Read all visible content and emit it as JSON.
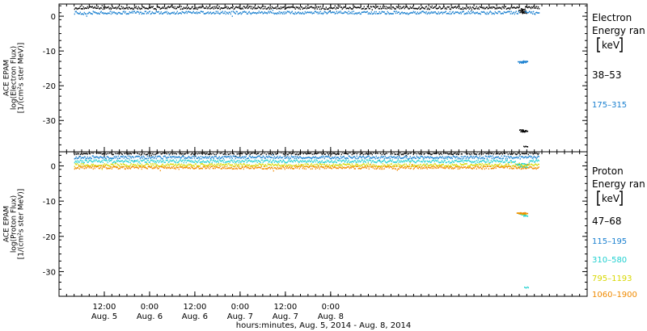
{
  "chart_data": [
    {
      "type": "scatter",
      "ylabel": [
        "ACE EPAM",
        "log(Electron Flux)",
        "[1/(cm²s ster MeV)]"
      ],
      "ylim": [
        -39,
        3.5
      ],
      "yticks": [
        0,
        -10,
        -20,
        -30
      ],
      "legend_title": [
        "Electron",
        "Energy ran",
        "[keV]"
      ],
      "series": [
        {
          "name": "38–53",
          "color": "#000000",
          "base": 2.4,
          "segments": [
            [
              4,
              122.0
            ],
            [
              123.5,
              127.2
            ]
          ],
          "extra": [
            [
              122.3,
              1.7
            ],
            [
              122.6,
              1.1
            ],
            [
              122.9,
              2.0
            ],
            [
              123.1,
              1.4
            ],
            [
              123.3,
              0.9
            ],
            [
              122.5,
              -32.8
            ],
            [
              122.8,
              -33.3
            ],
            [
              123.2,
              -33.0
            ],
            [
              123.6,
              -33.2
            ],
            [
              123.6,
              -37.5
            ]
          ]
        },
        {
          "name": "175–315",
          "color": "#1a80d0",
          "base": 1.0,
          "segments": [
            [
              4,
              122.0
            ],
            [
              123.5,
              127.2
            ]
          ],
          "extra": [
            [
              122.1,
              -13.2
            ],
            [
              122.5,
              -13.4
            ],
            [
              122.9,
              -13.1
            ],
            [
              123.3,
              -13.3
            ],
            [
              123.6,
              -13.0
            ]
          ]
        }
      ]
    },
    {
      "type": "scatter",
      "ylabel": [
        "ACE EPAM",
        "log(Proton Flux)",
        "[1/(cm²s ster MeV)]"
      ],
      "ylim": [
        -37,
        4
      ],
      "yticks": [
        0,
        -10,
        -20,
        -30
      ],
      "legend_title": [
        "Proton",
        "Energy ran",
        "[keV]"
      ],
      "xlabel": "hours:minutes, Aug.  5, 2014 - Aug.  8, 2014",
      "series": [
        {
          "name": "47–68",
          "color": "#000000",
          "base": 3.6,
          "segments": [
            [
              4,
              127.2
            ]
          ],
          "extra": [
            [
              35.0,
              4.1
            ],
            [
              36.0,
              4.2
            ],
            [
              60.0,
              4.0
            ],
            [
              82.0,
              3.9
            ]
          ]
        },
        {
          "name": "115–195",
          "color": "#1a80d0",
          "base": 2.4,
          "segments": [
            [
              4,
              127.2
            ]
          ],
          "extra": []
        },
        {
          "name": "310–580",
          "color": "#20d0d0",
          "base": 1.3,
          "segments": [
            [
              4,
              121.0
            ],
            [
              124.5,
              127.2
            ]
          ],
          "extra": [
            [
              121.5,
              0.5
            ],
            [
              122.0,
              0.2
            ],
            [
              122.5,
              -0.3
            ],
            [
              123.0,
              0.6
            ],
            [
              123.6,
              -0.4
            ],
            [
              124.0,
              0.3
            ],
            [
              122.3,
              -13.6
            ],
            [
              123.0,
              -13.9
            ],
            [
              123.6,
              -14.2
            ],
            [
              123.8,
              -34.5
            ]
          ]
        },
        {
          "name": "795–1193",
          "color": "#d8d800",
          "base": 0.2,
          "segments": [
            [
              4,
              127.2
            ]
          ],
          "extra": [
            [
              122.0,
              -13.5
            ],
            [
              123.2,
              -13.7
            ]
          ]
        },
        {
          "name": "1060–1900",
          "color": "#f08a00",
          "base": -0.5,
          "segments": [
            [
              4,
              127.2
            ]
          ],
          "extra": [
            [
              121.8,
              -13.4
            ],
            [
              122.4,
              -13.5
            ],
            [
              123.0,
              -13.6
            ],
            [
              123.6,
              -13.4
            ]
          ]
        }
      ]
    }
  ],
  "x_axis": {
    "range_hours": [
      0,
      140
    ],
    "ticks": [
      {
        "hour": 12,
        "time": "12:00",
        "day": "Aug. 5"
      },
      {
        "hour": 24,
        "time": "0:00",
        "day": "Aug. 6"
      },
      {
        "hour": 36,
        "time": "12:00",
        "day": "Aug. 6"
      },
      {
        "hour": 48,
        "time": "0:00",
        "day": "Aug. 7"
      },
      {
        "hour": 60,
        "time": "12:00",
        "day": "Aug. 7"
      },
      {
        "hour": 72,
        "time": "0:00",
        "day": "Aug. 8"
      }
    ],
    "minor_every_hours": 2
  }
}
